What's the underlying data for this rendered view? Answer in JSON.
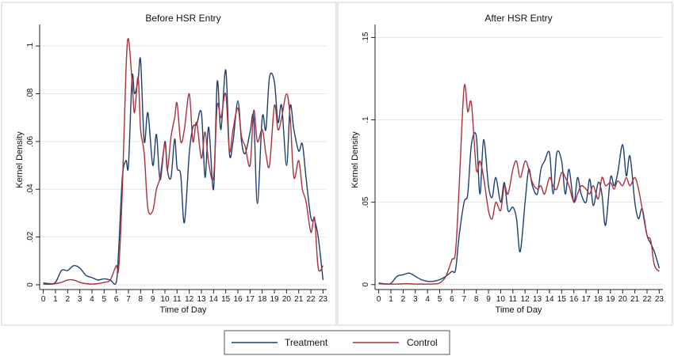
{
  "legend": [
    {
      "name": "Treatment",
      "color": "#1f3f6e"
    },
    {
      "name": "Control",
      "color": "#a8323e"
    }
  ],
  "chart_data": [
    {
      "type": "line",
      "title": "Before HSR Entry",
      "xlabel": "Time of Day",
      "ylabel": "Kernel Density",
      "xlim": [
        -0.3,
        23.3
      ],
      "ylim": [
        -0.002,
        0.107
      ],
      "xticks": [
        "0",
        "1",
        "2",
        "3",
        "4",
        "5",
        "6",
        "7",
        "8",
        "9",
        "10",
        "11",
        "12",
        "13",
        "14",
        "15",
        "16",
        "17",
        "18",
        "19",
        "20",
        "21",
        "22",
        "23"
      ],
      "yticks": [
        {
          "value": 0,
          "label": "0"
        },
        {
          "value": 0.02,
          "label": ".02"
        },
        {
          "value": 0.04,
          "label": ".04"
        },
        {
          "value": 0.06,
          "label": ".06"
        },
        {
          "value": 0.08,
          "label": ".08"
        },
        {
          "value": 0.1,
          "label": ".1"
        }
      ],
      "grid": true,
      "series": [
        {
          "name": "Treatment",
          "color": "#1f3f6e",
          "x": [
            0,
            0.5,
            1,
            1.5,
            2,
            2.5,
            3,
            3.5,
            4,
            4.5,
            5,
            5.5,
            6,
            6.2,
            6.5,
            6.8,
            7,
            7.3,
            7.5,
            7.8,
            8,
            8.3,
            8.6,
            9,
            9.3,
            9.6,
            10,
            10.2,
            10.5,
            10.8,
            11,
            11.3,
            11.6,
            12,
            12.3,
            12.6,
            13,
            13.3,
            13.6,
            14,
            14.3,
            14.6,
            15,
            15.3,
            15.6,
            16,
            16.3,
            16.6,
            17,
            17.3,
            17.6,
            18,
            18.3,
            18.6,
            19,
            19.3,
            19.6,
            20,
            20.3,
            20.6,
            21,
            21.3,
            21.6,
            22,
            22.3,
            22.6,
            23
          ],
          "y": [
            0.0008,
            0.0005,
            0.001,
            0.006,
            0.006,
            0.008,
            0.007,
            0.004,
            0.003,
            0.002,
            0.0025,
            0.002,
            0.001,
            0.015,
            0.045,
            0.052,
            0.05,
            0.087,
            0.08,
            0.086,
            0.094,
            0.06,
            0.072,
            0.05,
            0.063,
            0.044,
            0.06,
            0.048,
            0.045,
            0.061,
            0.049,
            0.046,
            0.026,
            0.055,
            0.066,
            0.067,
            0.072,
            0.045,
            0.066,
            0.04,
            0.085,
            0.065,
            0.09,
            0.055,
            0.06,
            0.077,
            0.06,
            0.055,
            0.064,
            0.07,
            0.034,
            0.07,
            0.065,
            0.087,
            0.085,
            0.068,
            0.075,
            0.05,
            0.075,
            0.065,
            0.056,
            0.059,
            0.045,
            0.028,
            0.027,
            0.02,
            0.002
          ]
        },
        {
          "name": "Control",
          "color": "#a8323e",
          "x": [
            0,
            0.5,
            1,
            1.5,
            2,
            2.5,
            3,
            3.5,
            4,
            4.5,
            5,
            5.5,
            6,
            6.2,
            6.5,
            6.8,
            7,
            7.3,
            7.5,
            7.8,
            8,
            8.3,
            8.6,
            9,
            9.3,
            9.6,
            10,
            10.2,
            10.5,
            10.8,
            11,
            11.3,
            11.6,
            12,
            12.3,
            12.6,
            13,
            13.3,
            13.6,
            14,
            14.3,
            14.6,
            15,
            15.3,
            15.6,
            16,
            16.3,
            16.6,
            17,
            17.3,
            17.6,
            18,
            18.3,
            18.6,
            19,
            19.3,
            19.6,
            20,
            20.3,
            20.6,
            21,
            21.3,
            21.6,
            22,
            22.3,
            22.6,
            23
          ],
          "y": [
            0.0003,
            0.0002,
            0.0005,
            0.001,
            0.002,
            0.002,
            0.001,
            0.0005,
            0.0003,
            0.0005,
            0.001,
            0.002,
            0.008,
            0.007,
            0.04,
            0.09,
            0.103,
            0.085,
            0.072,
            0.087,
            0.065,
            0.055,
            0.032,
            0.031,
            0.04,
            0.045,
            0.059,
            0.048,
            0.062,
            0.07,
            0.076,
            0.06,
            0.065,
            0.08,
            0.06,
            0.068,
            0.053,
            0.064,
            0.051,
            0.045,
            0.075,
            0.07,
            0.08,
            0.056,
            0.065,
            0.074,
            0.062,
            0.058,
            0.05,
            0.073,
            0.06,
            0.065,
            0.055,
            0.05,
            0.075,
            0.065,
            0.07,
            0.08,
            0.07,
            0.045,
            0.052,
            0.04,
            0.035,
            0.022,
            0.028,
            0.007,
            0.008
          ]
        }
      ]
    },
    {
      "type": "line",
      "title": "After HSR Entry",
      "xlabel": "Time of Day",
      "ylabel": "Kernel Density",
      "xlim": [
        -0.3,
        23.3
      ],
      "ylim": [
        -0.003,
        0.155
      ],
      "xticks": [
        "0",
        "1",
        "2",
        "3",
        "4",
        "5",
        "6",
        "7",
        "8",
        "9",
        "10",
        "11",
        "12",
        "13",
        "14",
        "15",
        "16",
        "17",
        "18",
        "19",
        "20",
        "21",
        "22",
        "23"
      ],
      "yticks": [
        {
          "value": 0,
          "label": "0"
        },
        {
          "value": 0.05,
          "label": ".05"
        },
        {
          "value": 0.1,
          "label": ".1"
        },
        {
          "value": 0.15,
          "label": ".15"
        }
      ],
      "grid": true,
      "series": [
        {
          "name": "Treatment",
          "color": "#1f3f6e",
          "x": [
            0,
            0.5,
            1,
            1.5,
            2,
            2.5,
            3,
            3.5,
            4,
            4.5,
            5,
            5.5,
            6,
            6.3,
            6.6,
            7,
            7.3,
            7.6,
            8,
            8.3,
            8.6,
            9,
            9.3,
            9.6,
            10,
            10.3,
            10.6,
            11,
            11.3,
            11.6,
            12,
            12.3,
            12.6,
            13,
            13.3,
            13.6,
            14,
            14.3,
            14.6,
            15,
            15.3,
            15.6,
            16,
            16.3,
            16.6,
            17,
            17.3,
            17.6,
            18,
            18.3,
            18.6,
            19,
            19.3,
            19.6,
            20,
            20.3,
            20.6,
            21,
            21.3,
            21.6,
            22,
            22.3,
            22.6,
            23
          ],
          "y": [
            0.001,
            0.0005,
            0.0008,
            0.005,
            0.006,
            0.007,
            0.005,
            0.003,
            0.002,
            0.002,
            0.003,
            0.005,
            0.008,
            0.009,
            0.03,
            0.05,
            0.055,
            0.085,
            0.09,
            0.055,
            0.088,
            0.06,
            0.053,
            0.065,
            0.05,
            0.062,
            0.045,
            0.047,
            0.04,
            0.02,
            0.05,
            0.07,
            0.06,
            0.055,
            0.07,
            0.075,
            0.08,
            0.055,
            0.08,
            0.075,
            0.055,
            0.07,
            0.05,
            0.065,
            0.055,
            0.05,
            0.064,
            0.048,
            0.062,
            0.055,
            0.036,
            0.065,
            0.06,
            0.068,
            0.085,
            0.066,
            0.078,
            0.05,
            0.04,
            0.046,
            0.03,
            0.025,
            0.02,
            0.01
          ]
        },
        {
          "name": "Control",
          "color": "#a8323e",
          "x": [
            0,
            0.5,
            1,
            1.5,
            2,
            2.5,
            3,
            3.5,
            4,
            4.5,
            5,
            5.5,
            6,
            6.3,
            6.6,
            7,
            7.3,
            7.6,
            8,
            8.3,
            8.6,
            9,
            9.3,
            9.6,
            10,
            10.3,
            10.6,
            11,
            11.3,
            11.6,
            12,
            12.3,
            12.6,
            13,
            13.3,
            13.6,
            14,
            14.3,
            14.6,
            15,
            15.3,
            15.6,
            16,
            16.3,
            16.6,
            17,
            17.3,
            17.6,
            18,
            18.3,
            18.6,
            19,
            19.3,
            19.6,
            20,
            20.3,
            20.6,
            21,
            21.3,
            21.6,
            22,
            22.3,
            22.6,
            23
          ],
          "y": [
            0.0005,
            0.0003,
            0.0003,
            0.0003,
            0.0005,
            0.0005,
            0.0003,
            0.0003,
            0.0003,
            0.0004,
            0.001,
            0.005,
            0.015,
            0.02,
            0.06,
            0.12,
            0.105,
            0.11,
            0.07,
            0.075,
            0.065,
            0.045,
            0.04,
            0.05,
            0.045,
            0.06,
            0.055,
            0.07,
            0.075,
            0.065,
            0.075,
            0.07,
            0.062,
            0.058,
            0.06,
            0.055,
            0.065,
            0.06,
            0.058,
            0.068,
            0.065,
            0.06,
            0.05,
            0.055,
            0.06,
            0.058,
            0.055,
            0.06,
            0.052,
            0.065,
            0.06,
            0.062,
            0.058,
            0.063,
            0.06,
            0.065,
            0.06,
            0.065,
            0.058,
            0.046,
            0.03,
            0.027,
            0.012,
            0.008
          ]
        }
      ]
    }
  ]
}
